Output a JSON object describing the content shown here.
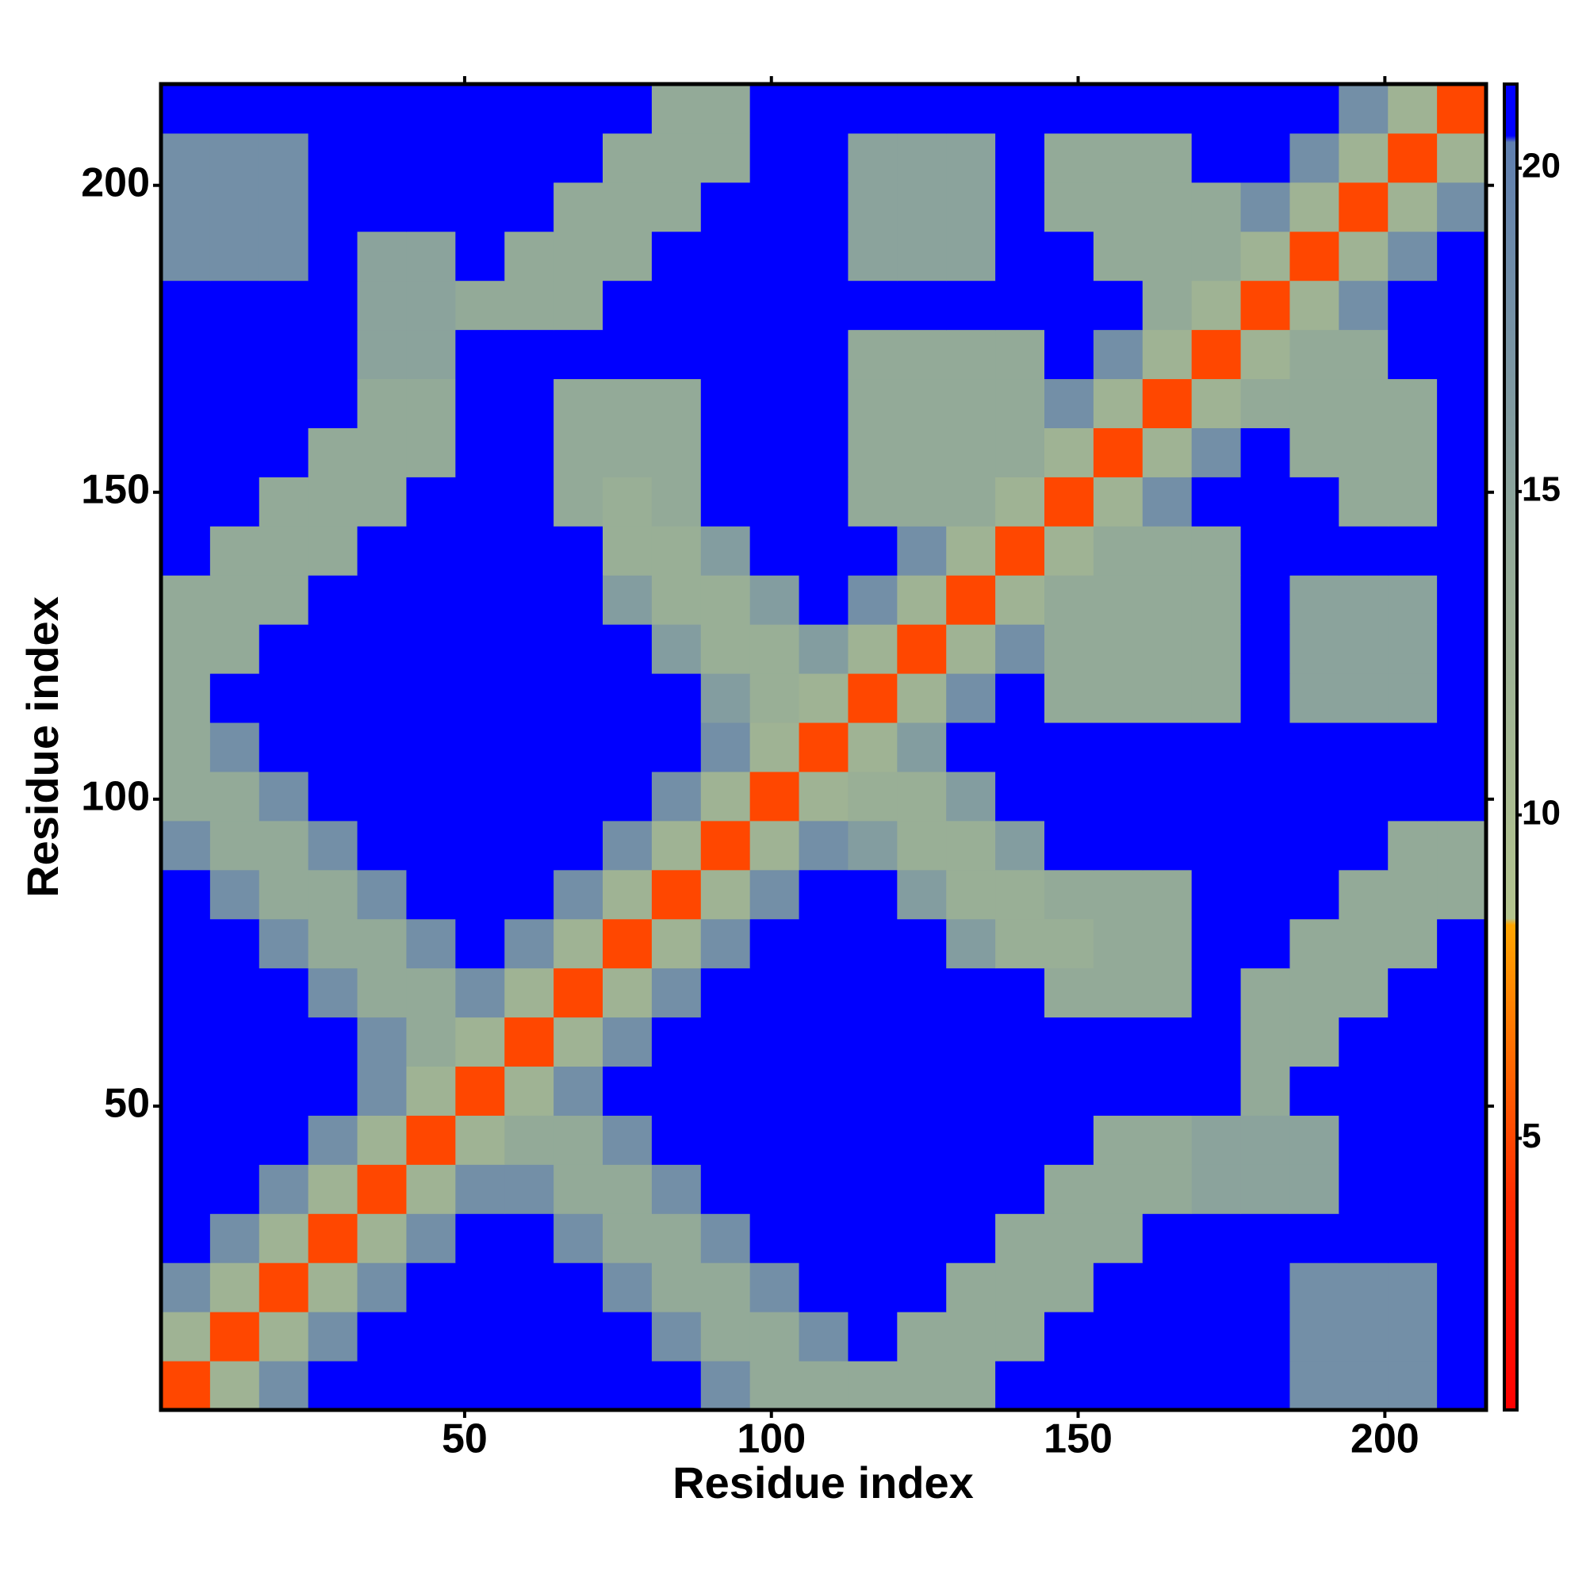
{
  "chart_data": {
    "type": "heatmap",
    "xlabel": "Residue index",
    "ylabel": "Residue index",
    "x": [
      4.5,
      12.5,
      20.5,
      28.5,
      36.5,
      44.5,
      52.5,
      60.5,
      68.5,
      76.5,
      84.5,
      92.5,
      100.5,
      108.5,
      116.5,
      124.5,
      132.5,
      140.5,
      148.5,
      156.5,
      164.5,
      172.5,
      180.5,
      188.5,
      196.5,
      204.5,
      212.5
    ],
    "y": [
      4.5,
      12.5,
      20.5,
      28.5,
      36.5,
      44.5,
      52.5,
      60.5,
      68.5,
      76.5,
      84.5,
      92.5,
      100.5,
      108.5,
      116.5,
      124.5,
      132.5,
      140.5,
      148.5,
      156.5,
      164.5,
      172.5,
      180.5,
      188.5,
      196.5,
      204.5,
      212.5
    ],
    "z": [
      [
        5,
        12,
        18,
        21,
        21,
        21,
        21,
        21,
        21,
        21,
        21,
        18,
        14,
        14,
        14,
        14,
        14,
        21,
        21,
        21,
        21,
        21,
        21,
        18,
        18,
        18,
        21
      ],
      [
        12,
        5,
        12,
        18,
        21,
        21,
        21,
        21,
        21,
        21,
        18,
        14,
        14,
        18,
        21,
        14,
        14,
        14,
        21,
        21,
        21,
        21,
        21,
        18,
        18,
        18,
        21
      ],
      [
        18,
        12,
        5,
        12,
        18,
        21,
        21,
        21,
        21,
        18,
        14,
        14,
        18,
        21,
        21,
        21,
        14,
        14,
        14,
        21,
        21,
        21,
        21,
        18,
        18,
        18,
        21
      ],
      [
        21,
        18,
        12,
        5,
        12,
        18,
        21,
        21,
        18,
        14,
        14,
        18,
        21,
        21,
        21,
        21,
        21,
        14,
        14,
        14,
        21,
        21,
        21,
        21,
        21,
        21,
        21
      ],
      [
        21,
        21,
        18,
        12,
        5,
        12,
        18,
        18,
        14,
        14,
        18,
        21,
        21,
        21,
        21,
        21,
        21,
        21,
        14,
        14,
        14,
        15,
        15,
        15,
        21,
        21,
        21
      ],
      [
        21,
        21,
        21,
        18,
        12,
        5,
        12,
        14,
        14,
        18,
        21,
        21,
        21,
        21,
        21,
        21,
        21,
        21,
        21,
        14,
        14,
        15,
        15,
        15,
        21,
        21,
        21
      ],
      [
        21,
        21,
        21,
        21,
        18,
        12,
        5,
        12,
        18,
        21,
        21,
        21,
        21,
        21,
        21,
        21,
        21,
        21,
        21,
        21,
        21,
        21,
        14,
        21,
        21,
        21,
        21
      ],
      [
        21,
        21,
        21,
        21,
        18,
        14,
        12,
        5,
        12,
        18,
        21,
        21,
        21,
        21,
        21,
        21,
        21,
        21,
        21,
        21,
        21,
        21,
        14,
        14,
        21,
        21,
        21
      ],
      [
        21,
        21,
        21,
        18,
        14,
        14,
        18,
        12,
        5,
        12,
        18,
        21,
        21,
        21,
        21,
        21,
        21,
        21,
        14,
        14,
        14,
        21,
        14,
        14,
        14,
        21,
        21
      ],
      [
        21,
        21,
        18,
        14,
        14,
        18,
        21,
        18,
        12,
        5,
        12,
        18,
        21,
        21,
        21,
        21,
        16,
        13,
        13,
        14,
        14,
        21,
        21,
        14,
        14,
        14,
        21
      ],
      [
        21,
        18,
        14,
        14,
        18,
        21,
        21,
        21,
        18,
        12,
        5,
        12,
        18,
        21,
        21,
        16,
        13,
        13,
        14,
        14,
        14,
        21,
        21,
        21,
        14,
        14,
        14
      ],
      [
        18,
        14,
        14,
        18,
        21,
        21,
        21,
        21,
        21,
        18,
        12,
        5,
        12,
        18,
        16,
        13,
        13,
        16,
        21,
        21,
        21,
        21,
        21,
        21,
        21,
        14,
        14
      ],
      [
        14,
        14,
        18,
        21,
        21,
        21,
        21,
        21,
        21,
        21,
        18,
        12,
        5,
        12,
        13,
        13,
        16,
        21,
        21,
        21,
        21,
        21,
        21,
        21,
        21,
        21,
        21
      ],
      [
        14,
        18,
        21,
        21,
        21,
        21,
        21,
        21,
        21,
        21,
        21,
        18,
        12,
        5,
        12,
        16,
        21,
        21,
        21,
        21,
        21,
        21,
        21,
        21,
        21,
        21,
        21
      ],
      [
        14,
        21,
        21,
        21,
        21,
        21,
        21,
        21,
        21,
        21,
        21,
        16,
        13,
        12,
        5,
        12,
        18,
        21,
        14,
        14,
        14,
        14,
        21,
        15,
        15,
        15,
        21
      ],
      [
        14,
        14,
        21,
        21,
        21,
        21,
        21,
        21,
        21,
        21,
        16,
        13,
        13,
        16,
        12,
        5,
        12,
        18,
        14,
        14,
        14,
        14,
        21,
        15,
        15,
        15,
        21
      ],
      [
        14,
        14,
        14,
        21,
        21,
        21,
        21,
        21,
        21,
        16,
        13,
        13,
        16,
        21,
        18,
        12,
        5,
        12,
        14,
        14,
        14,
        14,
        21,
        15,
        15,
        15,
        21
      ],
      [
        21,
        14,
        14,
        14,
        21,
        21,
        21,
        21,
        21,
        13,
        13,
        16,
        21,
        21,
        21,
        18,
        12,
        5,
        12,
        14,
        14,
        14,
        21,
        21,
        21,
        21,
        21
      ],
      [
        21,
        21,
        14,
        14,
        14,
        21,
        21,
        21,
        14,
        13,
        14,
        21,
        21,
        21,
        14,
        14,
        14,
        12,
        5,
        12,
        18,
        21,
        21,
        21,
        14,
        14,
        21
      ],
      [
        21,
        21,
        21,
        14,
        14,
        14,
        21,
        21,
        14,
        14,
        14,
        21,
        21,
        21,
        14,
        14,
        14,
        14,
        12,
        5,
        12,
        18,
        21,
        14,
        14,
        14,
        21
      ],
      [
        21,
        21,
        21,
        21,
        14,
        14,
        21,
        21,
        14,
        14,
        14,
        21,
        21,
        21,
        14,
        14,
        14,
        14,
        18,
        12,
        5,
        12,
        14,
        14,
        14,
        14,
        21
      ],
      [
        21,
        21,
        21,
        21,
        15,
        15,
        21,
        21,
        21,
        21,
        21,
        21,
        21,
        21,
        14,
        14,
        14,
        14,
        21,
        18,
        12,
        5,
        12,
        14,
        14,
        21,
        21
      ],
      [
        21,
        21,
        21,
        21,
        15,
        15,
        14,
        14,
        14,
        21,
        21,
        21,
        21,
        21,
        21,
        21,
        21,
        21,
        21,
        21,
        14,
        12,
        5,
        12,
        18,
        21,
        21
      ],
      [
        18,
        18,
        18,
        21,
        15,
        15,
        21,
        14,
        14,
        14,
        21,
        21,
        21,
        21,
        15,
        15,
        15,
        21,
        21,
        14,
        14,
        14,
        12,
        5,
        12,
        18,
        21
      ],
      [
        18,
        18,
        18,
        21,
        21,
        21,
        21,
        21,
        14,
        14,
        14,
        21,
        21,
        21,
        15,
        15,
        15,
        21,
        14,
        14,
        14,
        14,
        18,
        12,
        5,
        12,
        18
      ],
      [
        18,
        18,
        18,
        21,
        21,
        21,
        21,
        21,
        21,
        14,
        14,
        14,
        21,
        21,
        15,
        15,
        15,
        21,
        14,
        14,
        14,
        21,
        21,
        18,
        12,
        5,
        12
      ],
      [
        21,
        21,
        21,
        21,
        21,
        21,
        21,
        21,
        21,
        21,
        14,
        14,
        21,
        21,
        21,
        21,
        21,
        21,
        21,
        21,
        21,
        21,
        21,
        21,
        18,
        12,
        5
      ]
    ],
    "xlim": [
      0.5,
      216.5
    ],
    "ylim": [
      0.5,
      216.5
    ],
    "xticks": [
      50,
      100,
      150,
      200
    ],
    "yticks": [
      50,
      100,
      150,
      200
    ],
    "zlim": [
      0.8,
      21.3
    ],
    "zticks": [
      5,
      10,
      15,
      20
    ],
    "colorscale": [
      [
        0.8,
        "#ff0000"
      ],
      [
        4,
        "#ff2a00"
      ],
      [
        8.3,
        "#ffa500"
      ],
      [
        8.4,
        "#b4c48e"
      ],
      [
        14,
        "#93aa98"
      ],
      [
        20.4,
        "#5f7fb0"
      ],
      [
        20.5,
        "#0000ff"
      ],
      [
        21.3,
        "#0000ff"
      ]
    ]
  }
}
